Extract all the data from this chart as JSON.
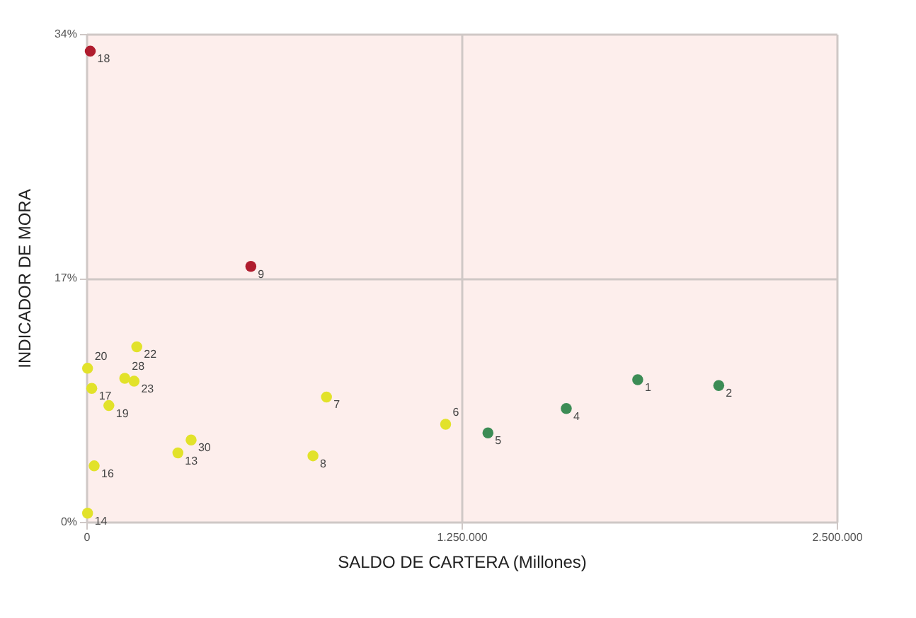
{
  "chart_data": {
    "type": "scatter",
    "xlabel": "SALDO DE CARTERA (Millones)",
    "ylabel": "INDICADOR DE MORA",
    "series": [
      {
        "color": "#b01c2e",
        "x": [
          13000,
          548000
        ],
        "values": [
          32.8,
          17.8
        ]
      },
      {
        "color": "#e2e22a",
        "x": [
          168000,
          4000,
          128000,
          159000,
          18000,
          75000,
          349000,
          305000,
          26000,
          4000,
          800000,
          755000,
          1197000
        ],
        "values": [
          12.2,
          10.7,
          10.0,
          9.8,
          9.3,
          8.1,
          5.7,
          4.8,
          3.9,
          0.6,
          8.7,
          4.6,
          6.8
        ]
      },
      {
        "color": "#3c8c55",
        "x": [
          1338000,
          1599000,
          1837000,
          2107000
        ],
        "values": [
          6.2,
          7.9,
          9.9,
          9.5
        ]
      }
    ],
    "annotations": [
      {
        "text": "18",
        "x": 13000,
        "y": 32.8
      },
      {
        "text": "9",
        "x": 548000,
        "y": 17.8
      },
      {
        "text": "22",
        "x": 168000,
        "y": 12.2
      },
      {
        "text": "20",
        "x": 4000,
        "y": 10.7
      },
      {
        "text": "28",
        "x": 128000,
        "y": 10.0
      },
      {
        "text": "23",
        "x": 159000,
        "y": 9.8
      },
      {
        "text": "17",
        "x": 18000,
        "y": 9.3
      },
      {
        "text": "19",
        "x": 75000,
        "y": 8.1
      },
      {
        "text": "30",
        "x": 349000,
        "y": 5.7
      },
      {
        "text": "13",
        "x": 305000,
        "y": 4.8
      },
      {
        "text": "16",
        "x": 26000,
        "y": 3.9
      },
      {
        "text": "14",
        "x": 4000,
        "y": 0.6
      },
      {
        "text": "7",
        "x": 800000,
        "y": 8.7
      },
      {
        "text": "8",
        "x": 755000,
        "y": 4.6
      },
      {
        "text": "6",
        "x": 1197000,
        "y": 6.8
      },
      {
        "text": "5",
        "x": 1338000,
        "y": 6.2
      },
      {
        "text": "4",
        "x": 1599000,
        "y": 7.9
      },
      {
        "text": "1",
        "x": 1837000,
        "y": 9.9
      },
      {
        "text": "2",
        "x": 2107000,
        "y": 9.5
      }
    ],
    "xlim": [
      0,
      2500000
    ],
    "xticks": [
      {
        "value": 0,
        "label": "0"
      },
      {
        "value": 1250000,
        "label": "1.250.000"
      },
      {
        "value": 2500000,
        "label": "2.500.000"
      }
    ],
    "ylim": [
      0,
      34
    ],
    "yticks": [
      {
        "value": 0,
        "label": "0%"
      },
      {
        "value": 17,
        "label": "17%"
      },
      {
        "value": 34,
        "label": "34%"
      }
    ],
    "grid": true,
    "marker": "circle"
  }
}
